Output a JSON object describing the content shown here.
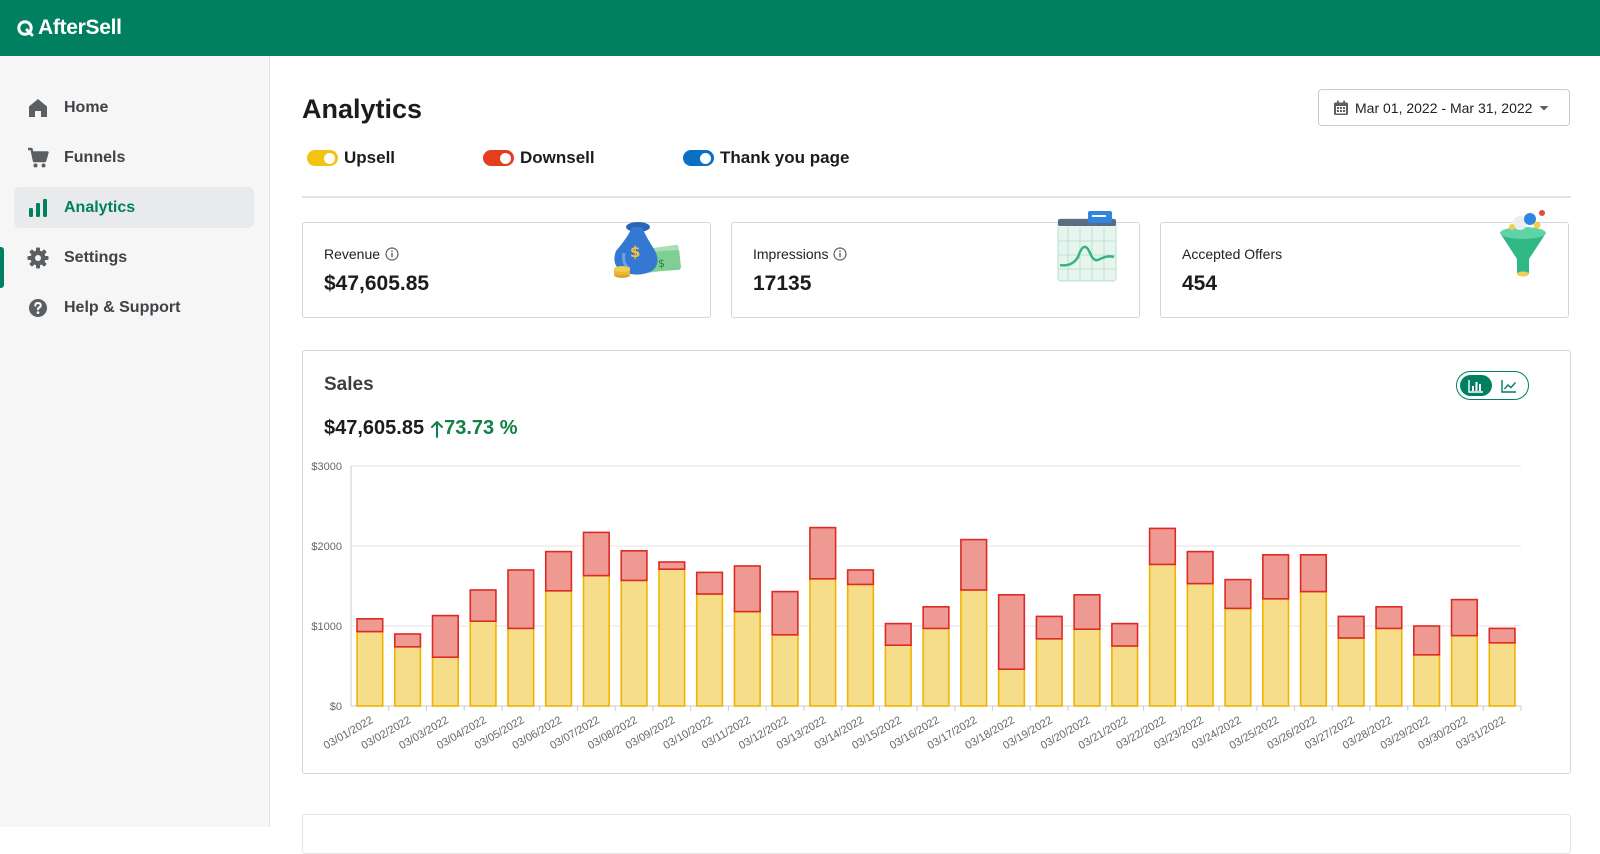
{
  "app": {
    "name": "AfterSell",
    "brand_color": "#008060"
  },
  "sidebar": {
    "items": [
      {
        "label": "Home",
        "icon": "home-icon"
      },
      {
        "label": "Funnels",
        "icon": "cart-icon"
      },
      {
        "label": "Analytics",
        "icon": "bar-chart-icon",
        "active": true
      },
      {
        "label": "Settings",
        "icon": "gear-icon"
      },
      {
        "label": "Help & Support",
        "icon": "question-circle-icon"
      }
    ]
  },
  "page": {
    "title": "Analytics",
    "date_range": "Mar 01, 2022 - Mar 31, 2022"
  },
  "toggles": [
    {
      "label": "Upsell",
      "color": "#f1c40f",
      "on": true
    },
    {
      "label": "Downsell",
      "color": "#e53d20",
      "on": true
    },
    {
      "label": "Thank you page",
      "color": "#0b6fc4",
      "on": true
    }
  ],
  "cards": [
    {
      "label": "Revenue",
      "value": "$47,605.85",
      "has_info": true,
      "icon": "money-bag-icon"
    },
    {
      "label": "Impressions",
      "value": "17135",
      "has_info": true,
      "icon": "chart-window-icon"
    },
    {
      "label": "Accepted Offers",
      "value": "454",
      "has_info": false,
      "icon": "funnel-icon"
    }
  ],
  "sales": {
    "title": "Sales",
    "total": "$47,605.85",
    "change": "73.73 %",
    "view_modes": [
      "bar-chart-icon",
      "line-chart-icon"
    ],
    "selected_view": "bar"
  },
  "chart_data": {
    "type": "bar",
    "stacked": true,
    "title": "",
    "xlabel": "",
    "ylabel": "",
    "ylim": [
      0,
      3000
    ],
    "yticks": [
      "$0",
      "$1000",
      "$2000",
      "$3000"
    ],
    "grid": true,
    "categories": [
      "03/01/2022",
      "03/02/2022",
      "03/03/2022",
      "03/04/2022",
      "03/05/2022",
      "03/06/2022",
      "03/07/2022",
      "03/08/2022",
      "03/09/2022",
      "03/10/2022",
      "03/11/2022",
      "03/12/2022",
      "03/13/2022",
      "03/14/2022",
      "03/15/2022",
      "03/16/2022",
      "03/17/2022",
      "03/18/2022",
      "03/19/2022",
      "03/20/2022",
      "03/21/2022",
      "03/22/2022",
      "03/23/2022",
      "03/24/2022",
      "03/25/2022",
      "03/26/2022",
      "03/27/2022",
      "03/28/2022",
      "03/29/2022",
      "03/30/2022",
      "03/31/2022"
    ],
    "series": [
      {
        "values": [
          930,
          740,
          610,
          1060,
          970,
          1440,
          1630,
          1570,
          1710,
          1400,
          1180,
          890,
          1590,
          1520,
          760,
          970,
          1450,
          460,
          840,
          960,
          750,
          1770,
          1530,
          1220,
          1340,
          1430,
          850,
          970,
          640,
          880,
          790
        ],
        "fill": "#f5dd8a",
        "stroke": "#f0b400"
      },
      {
        "values": [
          160,
          160,
          520,
          390,
          730,
          490,
          540,
          370,
          90,
          270,
          570,
          540,
          640,
          180,
          270,
          270,
          630,
          930,
          280,
          430,
          280,
          450,
          400,
          360,
          550,
          460,
          270,
          270,
          360,
          450,
          180
        ],
        "fill": "#ee9a92",
        "stroke": "#dd2a26"
      }
    ]
  }
}
